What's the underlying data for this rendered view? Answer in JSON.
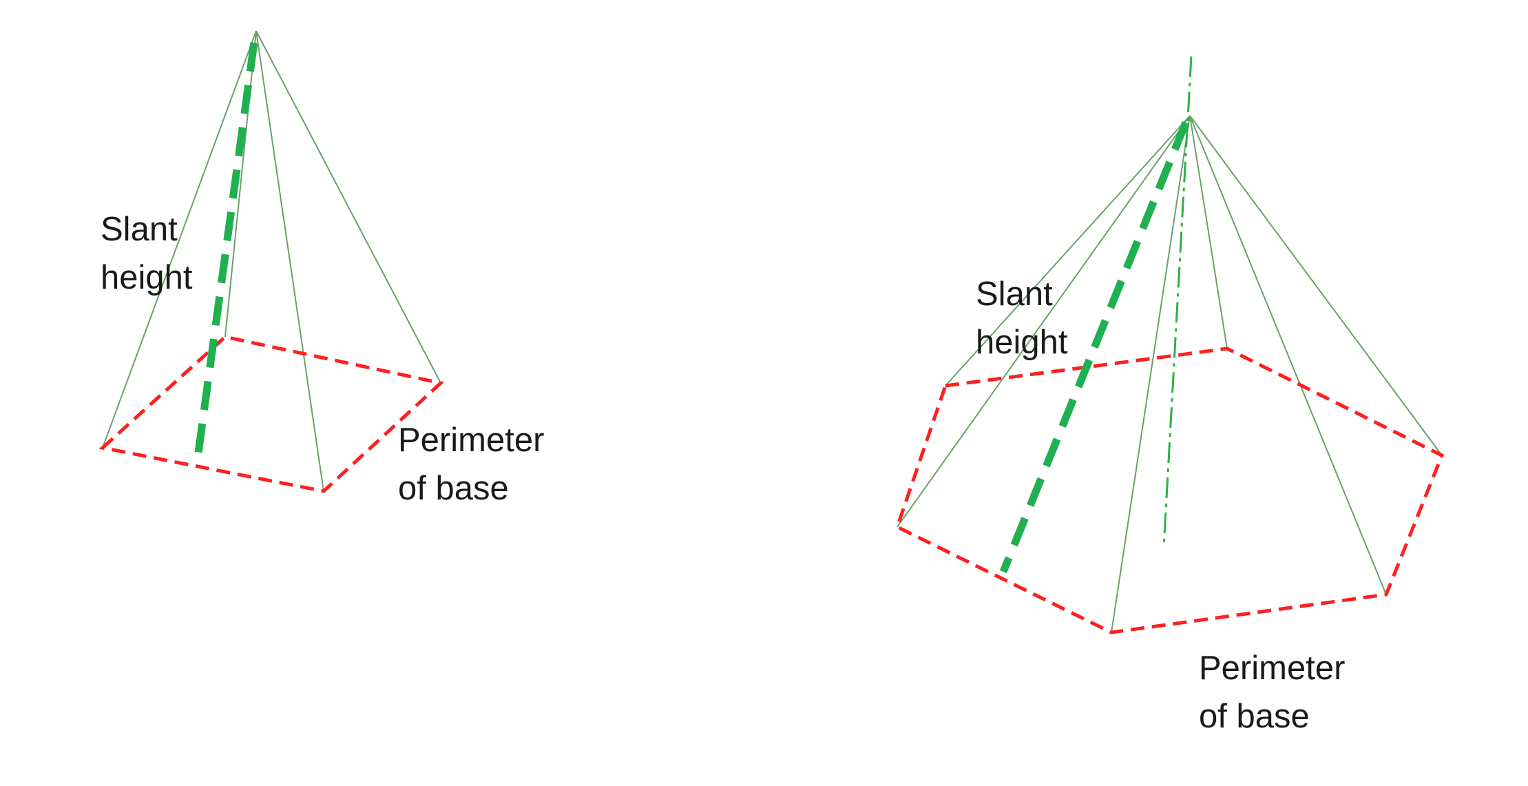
{
  "colors": {
    "edge": "#6aa06a",
    "slant": "#1fb050",
    "axis": "#2db043",
    "base": "#ff1f1f",
    "text": "#1a1a1a",
    "background": "#ffffff"
  },
  "square_pyramid": {
    "slant_label": [
      "Slant",
      "height"
    ],
    "perimeter_label": [
      "Perimeter",
      "of base"
    ]
  },
  "hexagonal_pyramid": {
    "slant_label": [
      "Slant",
      "height"
    ],
    "perimeter_label": [
      "Perimeter",
      "of base"
    ]
  }
}
